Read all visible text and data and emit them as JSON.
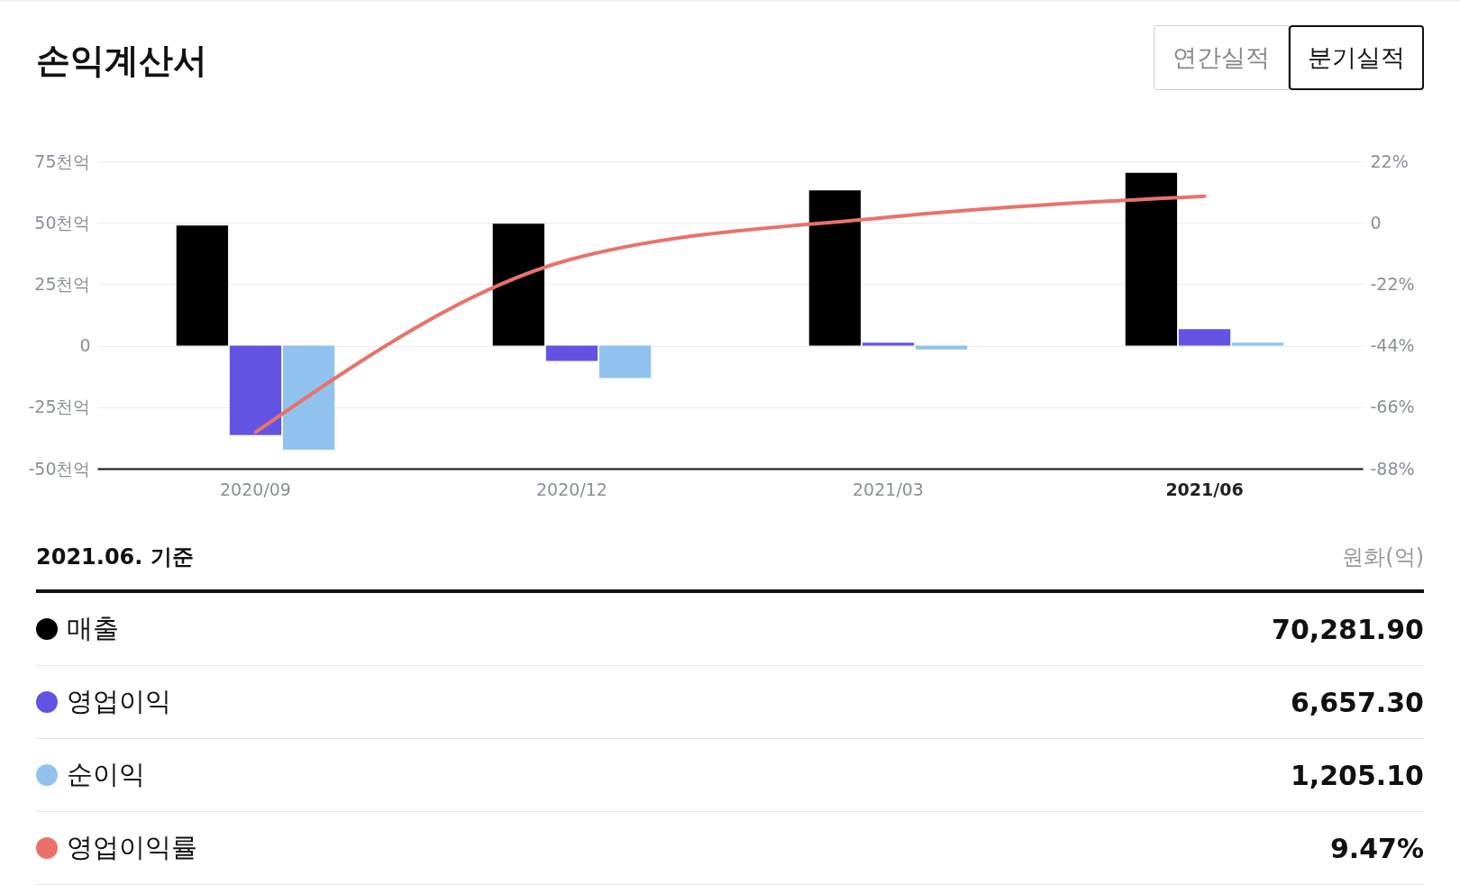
{
  "chart_data": {
    "type": "bar",
    "title": "손익계산서",
    "categories": [
      "2020/09",
      "2020/12",
      "2021/03",
      "2021/06"
    ],
    "series": [
      {
        "name": "매출",
        "color": "#000000",
        "values": [
          48.9,
          49.6,
          63.2,
          70.3
        ]
      },
      {
        "name": "영업이익",
        "color": "#6353e3",
        "values": [
          -36.3,
          -6.2,
          1.2,
          6.7
        ]
      },
      {
        "name": "순이익",
        "color": "#90c2f0",
        "values": [
          -42.3,
          -13.2,
          -1.5,
          1.2
        ]
      },
      {
        "name": "영업이익률",
        "type": "line",
        "axis": "y2",
        "color": "#e8726a",
        "values": [
          -75,
          -13,
          2,
          9.5
        ]
      }
    ],
    "ylim": [
      -50,
      75
    ],
    "yticks": [
      {
        "value": -50,
        "label": "-50천억"
      },
      {
        "value": -25,
        "label": "-25천억"
      },
      0,
      {
        "value": 25,
        "label": "25천억"
      },
      {
        "value": 50,
        "label": "50천억"
      },
      {
        "value": 75,
        "label": "75천억"
      }
    ],
    "y2lim": [
      -88,
      22
    ],
    "y2ticks": [
      {
        "value": -88,
        "label": "-88%"
      },
      {
        "value": -66,
        "label": "-66%"
      },
      {
        "value": -44,
        "label": "-44%"
      },
      {
        "value": -22,
        "label": "-22%"
      },
      0,
      {
        "value": 22,
        "label": "22%"
      }
    ],
    "grid": "y",
    "legend": "bottom",
    "annotations": [
      "연간실적",
      "분기실적",
      "2021.06. 기준",
      "원화(억)",
      "70,281.90",
      "6,657.30",
      "1,205.10",
      "9.47%"
    ]
  }
}
